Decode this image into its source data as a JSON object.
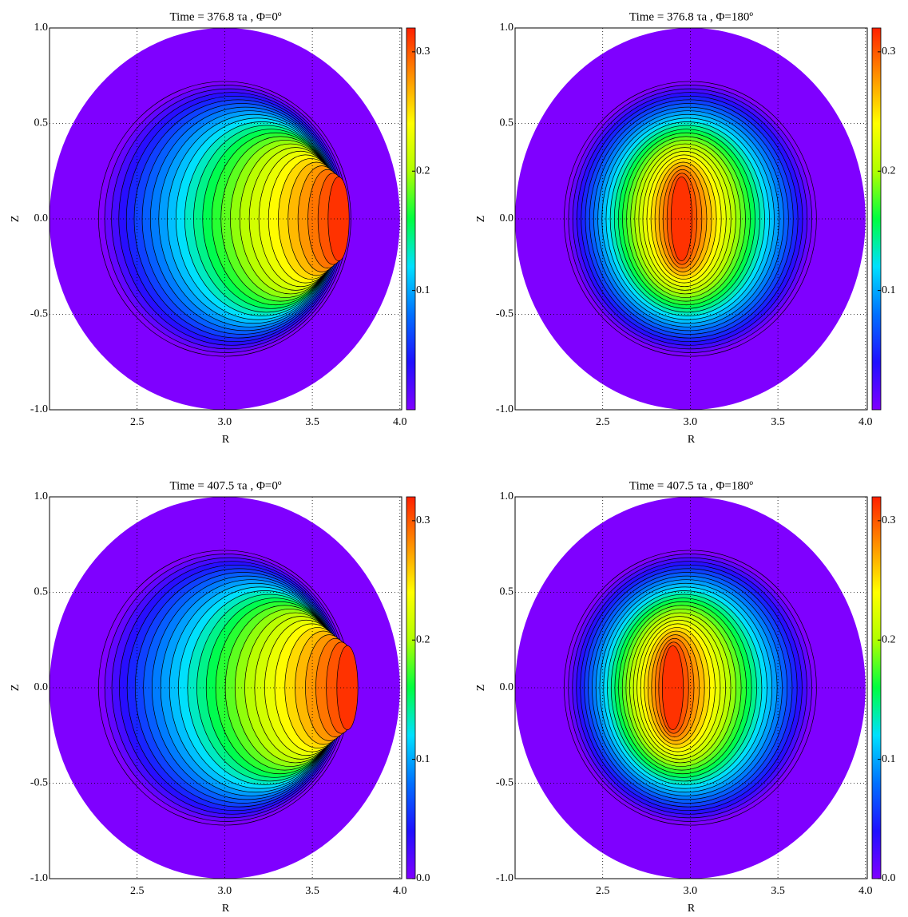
{
  "chart_data": [
    {
      "type": "contour",
      "title": "Time = 376.8 τa ,  Φ=0º",
      "xlabel": "R",
      "ylabel": "Z",
      "xlim": [
        2.0,
        4.01
      ],
      "ylim": [
        -1.0,
        1.0
      ],
      "xticks": [
        2.5,
        {
          "value": 3,
          "label": "3.0"
        },
        3.5,
        {
          "value": 4,
          "label": "4.0"
        }
      ],
      "yticks": [
        {
          "value": -1,
          "label": "-1.0"
        },
        -0.5,
        {
          "value": 0,
          "label": "0.0"
        },
        0.5,
        {
          "value": 1,
          "label": "1.0"
        }
      ],
      "clim": [
        0,
        0.32
      ],
      "cticks": [
        0.1,
        0.2,
        0.3
      ],
      "grid": true,
      "colormap": [
        "#7f00ff",
        "#1f10ff",
        "#0070ff",
        "#00e0ff",
        "#00ff40",
        "#b0ff00",
        "#ffff00",
        "#ff9000",
        "#ff2000"
      ]
    },
    {
      "type": "contour",
      "title": "Time = 376.8 τa ,  Φ=180º",
      "xlabel": "R",
      "ylabel": "Z",
      "xlim": [
        2.0,
        4.01
      ],
      "ylim": [
        -1.0,
        1.0
      ],
      "xticks": [
        2.5,
        {
          "value": 3,
          "label": "3.0"
        },
        3.5,
        {
          "value": 4,
          "label": "4.0"
        }
      ],
      "yticks": [
        {
          "value": -1,
          "label": "-1.0"
        },
        -0.5,
        {
          "value": 0,
          "label": "0.0"
        },
        0.5,
        {
          "value": 1,
          "label": "1.0"
        }
      ],
      "clim": [
        0,
        0.32
      ],
      "cticks": [
        0.1,
        0.2,
        0.3
      ],
      "grid": true,
      "colormap": [
        "#7f00ff",
        "#1f10ff",
        "#0070ff",
        "#00e0ff",
        "#00ff40",
        "#b0ff00",
        "#ffff00",
        "#ff9000",
        "#ff2000"
      ]
    },
    {
      "type": "contour",
      "title": "Time = 407.5 τa ,  Φ=0º",
      "xlabel": "R",
      "ylabel": "Z",
      "xlim": [
        2.0,
        4.01
      ],
      "ylim": [
        -1.0,
        1.0
      ],
      "xticks": [
        2.5,
        {
          "value": 3,
          "label": "3.0"
        },
        3.5,
        {
          "value": 4,
          "label": "4.0"
        }
      ],
      "yticks": [
        {
          "value": -1,
          "label": "-1.0"
        },
        -0.5,
        {
          "value": 0,
          "label": "0.0"
        },
        0.5,
        {
          "value": 1,
          "label": "1.0"
        }
      ],
      "clim": [
        0,
        0.32
      ],
      "cticks": [
        {
          "value": 0,
          "label": "0.0"
        },
        0.1,
        0.2,
        0.3
      ],
      "grid": true,
      "colormap": [
        "#7f00ff",
        "#1f10ff",
        "#0070ff",
        "#00e0ff",
        "#00ff40",
        "#b0ff00",
        "#ffff00",
        "#ff9000",
        "#ff2000"
      ]
    },
    {
      "type": "contour",
      "title": "Time = 407.5 τa ,  Φ=180º",
      "xlabel": "R",
      "ylabel": "Z",
      "xlim": [
        2.0,
        4.01
      ],
      "ylim": [
        -1.0,
        1.0
      ],
      "xticks": [
        2.5,
        {
          "value": 3,
          "label": "3.0"
        },
        3.5,
        {
          "value": 4,
          "label": "4.0"
        }
      ],
      "yticks": [
        {
          "value": -1,
          "label": "-1.0"
        },
        -0.5,
        {
          "value": 0,
          "label": "0.0"
        },
        0.5,
        {
          "value": 1,
          "label": "1.0"
        }
      ],
      "clim": [
        0,
        0.32
      ],
      "cticks": [
        {
          "value": 0,
          "label": "0.0"
        },
        0.1,
        0.2,
        0.3
      ],
      "grid": true,
      "colormap": [
        "#7f00ff",
        "#1f10ff",
        "#0070ff",
        "#00e0ff",
        "#00ff40",
        "#b0ff00",
        "#ffff00",
        "#ff9000",
        "#ff2000"
      ]
    }
  ]
}
